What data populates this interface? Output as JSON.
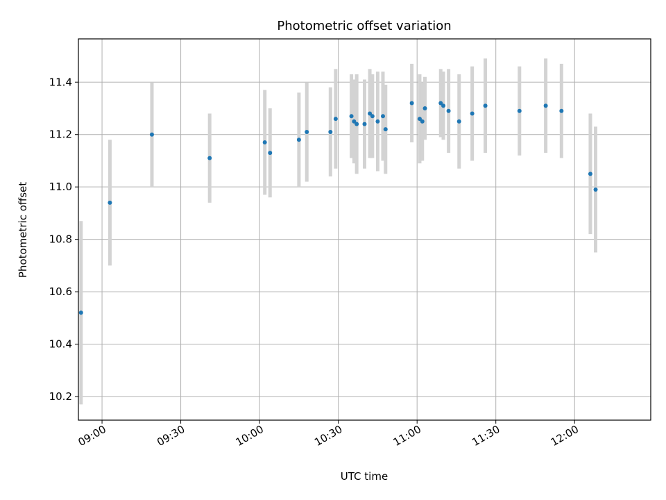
{
  "chart_data": {
    "type": "scatter",
    "title": "Photometric offset variation",
    "xlabel": "UTC time",
    "ylabel": "Photometric offset",
    "x_range": [
      "08:51",
      "12:29"
    ],
    "ylim": [
      10.11,
      11.565
    ],
    "grid": true,
    "x_ticks": [
      "09:00",
      "09:30",
      "10:00",
      "10:30",
      "11:00",
      "11:30",
      "12:00"
    ],
    "y_ticks": [
      10.2,
      10.4,
      10.6,
      10.8,
      11.0,
      11.2,
      11.4
    ],
    "y_tick_labels": [
      "10.2",
      "10.4",
      "10.6",
      "10.8",
      "11.0",
      "11.2",
      "11.4"
    ],
    "colors": {
      "points": "#1f77b4",
      "errorbars": "#d3d3d3",
      "grid": "#b0b0b0"
    },
    "series": [
      {
        "x": [
          "08:52",
          "09:03",
          "09:19",
          "09:41",
          "10:02",
          "10:04",
          "10:15",
          "10:18",
          "10:27",
          "10:29",
          "10:35",
          "10:36",
          "10:37",
          "10:40",
          "10:42",
          "10:43",
          "10:45",
          "10:47",
          "10:48",
          "10:58",
          "11:01",
          "11:02",
          "11:03",
          "11:09",
          "11:10",
          "11:12",
          "11:16",
          "11:21",
          "11:26",
          "11:39",
          "11:49",
          "11:55",
          "12:06",
          "12:08"
        ],
        "y": [
          10.52,
          10.94,
          11.2,
          11.11,
          11.17,
          11.13,
          11.18,
          11.21,
          11.21,
          11.26,
          11.27,
          11.25,
          11.24,
          11.24,
          11.28,
          11.27,
          11.25,
          11.27,
          11.22,
          11.32,
          11.26,
          11.25,
          11.3,
          11.32,
          11.31,
          11.29,
          11.25,
          11.28,
          11.31,
          11.29,
          11.31,
          11.29,
          11.05,
          10.99
        ],
        "err": [
          0.35,
          0.24,
          0.2,
          0.17,
          0.2,
          0.17,
          0.18,
          0.19,
          0.17,
          0.19,
          0.16,
          0.16,
          0.19,
          0.17,
          0.17,
          0.16,
          0.19,
          0.17,
          0.17,
          0.15,
          0.17,
          0.15,
          0.12,
          0.13,
          0.13,
          0.16,
          0.18,
          0.18,
          0.18,
          0.17,
          0.18,
          0.18,
          0.23,
          0.24
        ]
      }
    ]
  }
}
